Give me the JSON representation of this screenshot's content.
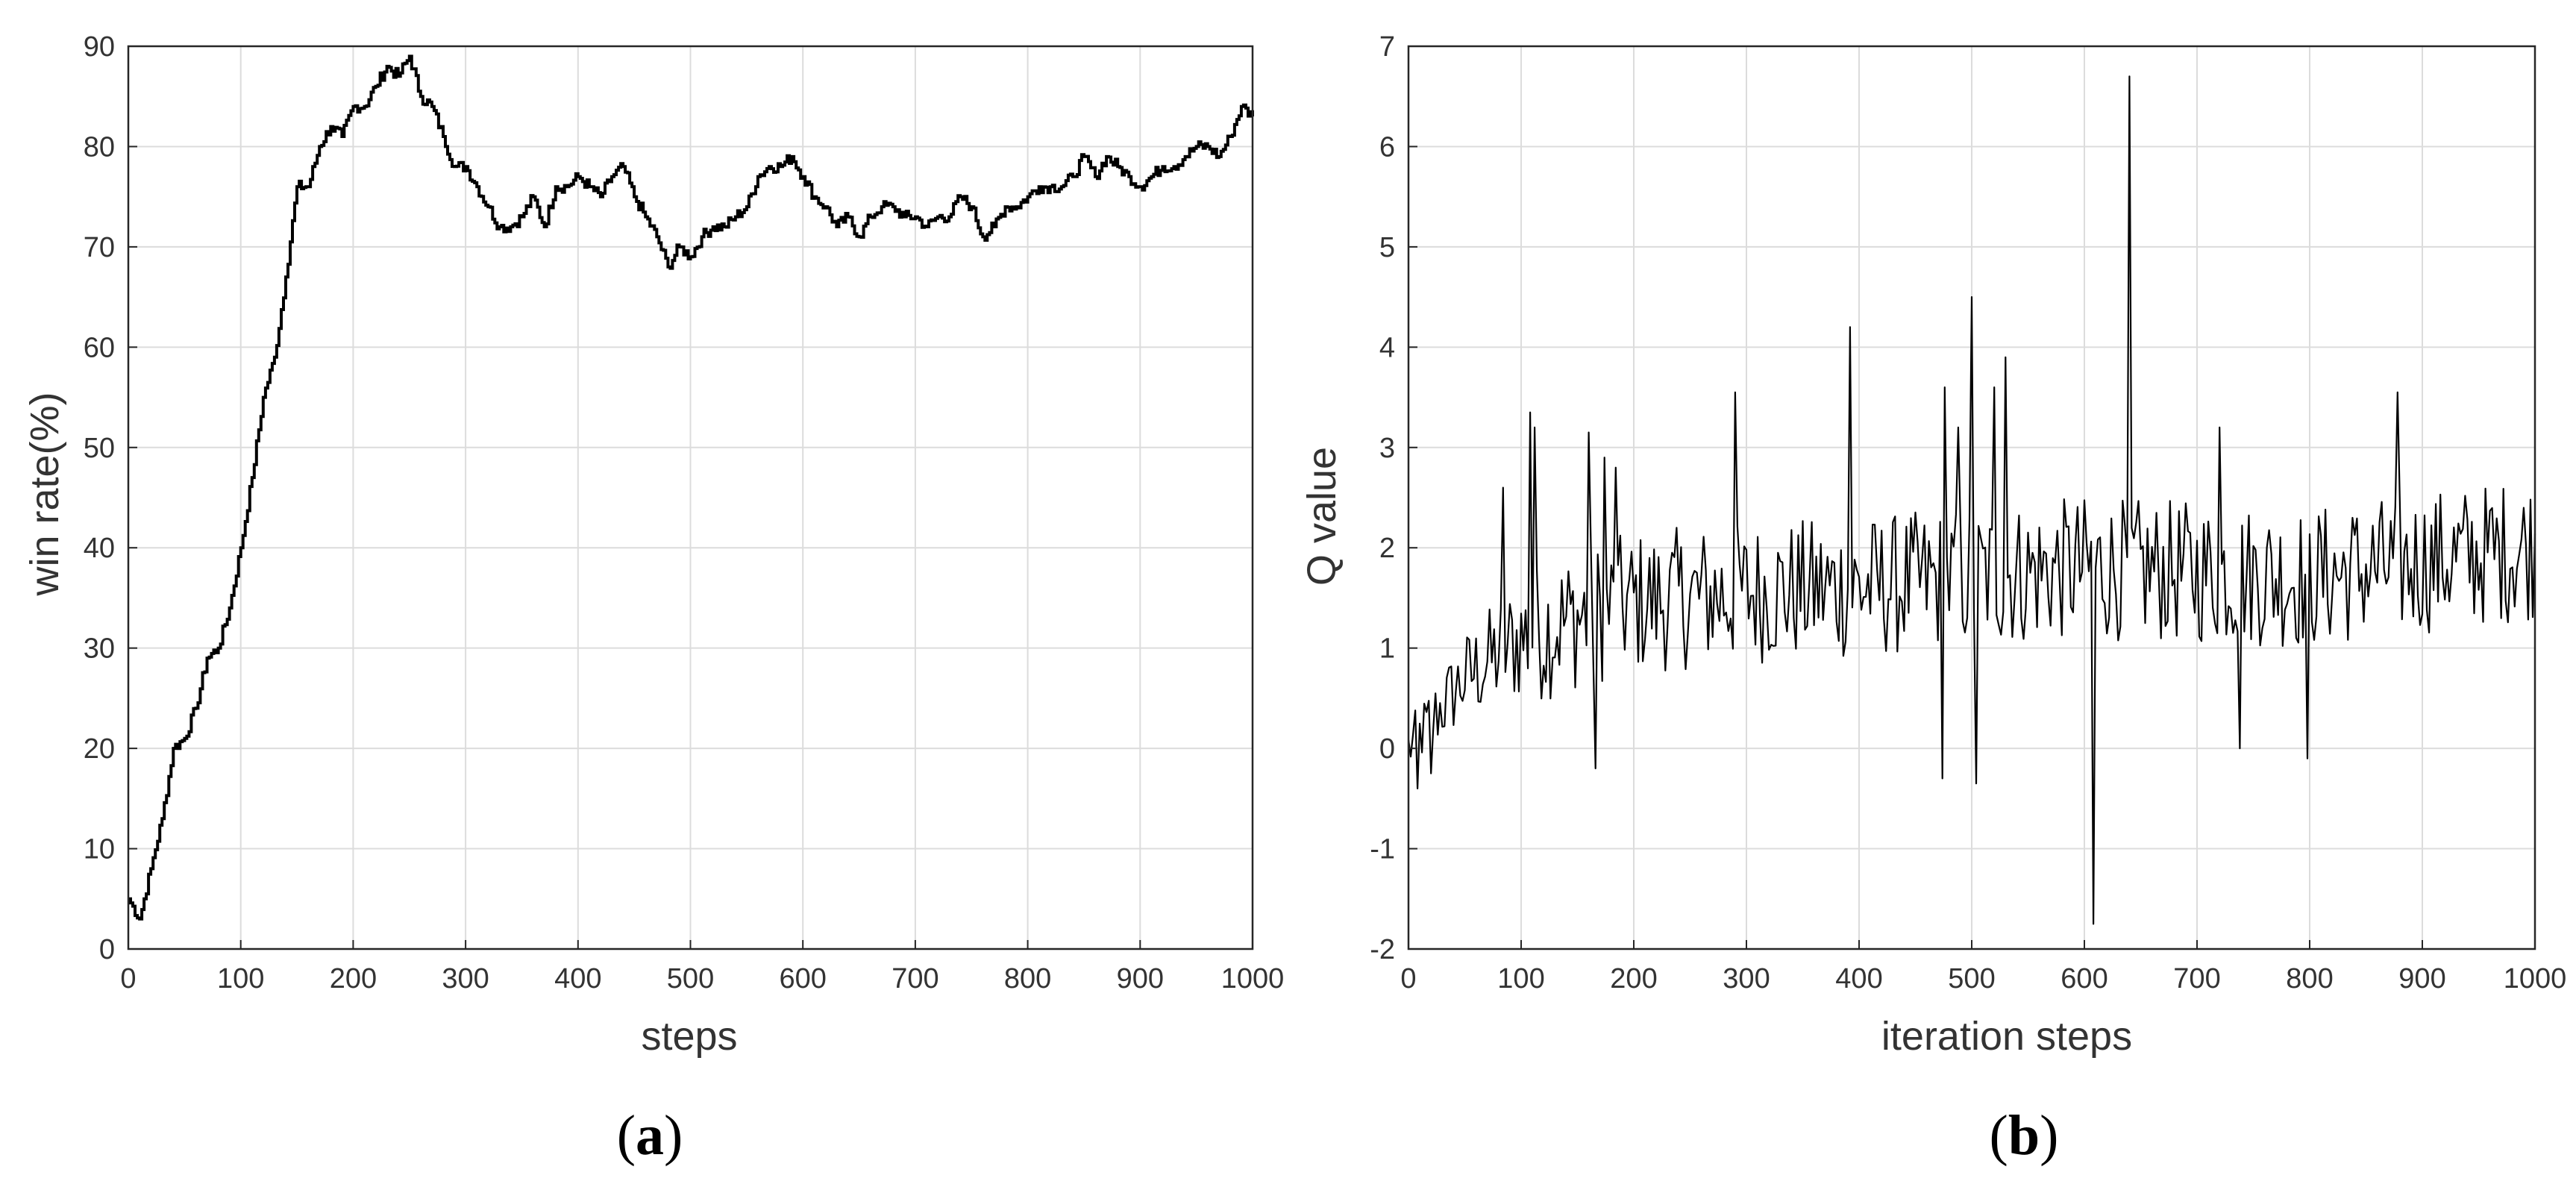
{
  "panels": [
    {
      "label": "(a)",
      "label_letter": "a",
      "chart_type": "line"
    },
    {
      "label": "(b)",
      "label_letter": "b",
      "chart_type": "line"
    }
  ],
  "chart_data": [
    {
      "type": "line",
      "title": "",
      "xlabel": "steps",
      "ylabel": "win rate(%)",
      "xlim": [
        0,
        1000
      ],
      "ylim": [
        0,
        90
      ],
      "xticks": [
        0,
        100,
        200,
        300,
        400,
        500,
        600,
        700,
        800,
        900,
        1000
      ],
      "yticks": [
        0,
        10,
        20,
        30,
        40,
        50,
        60,
        70,
        80,
        90
      ],
      "grid": true,
      "line_color": "#000000",
      "series": [
        {
          "x": [
            0,
            10,
            20,
            30,
            40,
            50,
            60,
            70,
            80,
            90,
            100,
            110,
            120,
            130,
            140,
            150,
            160,
            170,
            180,
            190,
            200,
            210,
            220,
            230,
            240,
            250,
            260,
            270,
            280,
            290,
            300,
            310,
            320,
            330,
            340,
            350,
            360,
            370,
            380,
            390,
            400,
            410,
            420,
            430,
            440,
            450,
            460,
            470,
            480,
            490,
            500,
            510,
            520,
            530,
            540,
            550,
            560,
            570,
            580,
            590,
            600,
            610,
            620,
            630,
            640,
            650,
            660,
            670,
            680,
            690,
            700,
            710,
            720,
            730,
            740,
            750,
            760,
            770,
            780,
            790,
            800,
            810,
            820,
            830,
            840,
            850,
            860,
            870,
            880,
            890,
            900,
            910,
            920,
            930,
            940,
            950,
            960,
            970,
            980,
            990,
            1000
          ],
          "values": [
            5,
            3,
            8,
            13,
            20,
            21,
            24,
            29,
            30,
            34,
            40,
            47,
            55,
            59,
            67,
            76,
            76,
            80,
            82,
            81,
            84,
            84,
            86,
            88,
            87,
            89,
            85,
            84,
            81,
            78,
            78,
            76,
            74,
            72,
            72,
            73,
            75,
            72,
            76,
            76,
            77,
            76,
            75,
            77,
            78,
            75,
            73,
            71,
            68,
            70,
            69,
            71,
            72,
            72,
            73,
            74,
            77,
            78,
            78,
            79,
            77,
            75,
            74,
            72,
            73,
            71,
            73,
            74,
            74,
            73,
            73,
            72,
            73,
            73,
            75,
            74,
            71,
            72,
            74,
            74,
            75,
            76,
            76,
            76,
            77,
            79,
            77,
            79,
            78,
            77,
            76,
            77,
            78,
            78,
            79,
            80,
            80,
            79,
            81,
            84,
            83
          ]
        }
      ]
    },
    {
      "type": "line",
      "title": "",
      "xlabel": "iteration steps",
      "ylabel": "Q value",
      "xlim": [
        0,
        1000
      ],
      "ylim": [
        -2,
        7
      ],
      "xticks": [
        0,
        100,
        200,
        300,
        400,
        500,
        600,
        700,
        800,
        900,
        1000
      ],
      "yticks": [
        -2,
        -1,
        0,
        1,
        2,
        3,
        4,
        5,
        6,
        7
      ],
      "grid": true,
      "line_color": "#000000",
      "trend": {
        "x": [
          0,
          50,
          100,
          150,
          200,
          300,
          400,
          500,
          600,
          700,
          800,
          900,
          1000
        ],
        "values": [
          0.0,
          0.7,
          1.1,
          1.3,
          1.45,
          1.55,
          1.6,
          1.7,
          1.8,
          1.75,
          1.7,
          1.85,
          2.0
        ]
      },
      "noise_amplitude": 0.55,
      "sample_step": 2,
      "spikes": [
        {
          "x": 83,
          "y": 2.6
        },
        {
          "x": 108,
          "y": 3.35
        },
        {
          "x": 112,
          "y": 3.2
        },
        {
          "x": 160,
          "y": 3.15
        },
        {
          "x": 165,
          "y": -0.2
        },
        {
          "x": 174,
          "y": 2.9
        },
        {
          "x": 183,
          "y": 2.8
        },
        {
          "x": 290,
          "y": 3.55
        },
        {
          "x": 392,
          "y": 4.2
        },
        {
          "x": 473,
          "y": -0.3
        },
        {
          "x": 475,
          "y": 3.6
        },
        {
          "x": 487,
          "y": 3.2
        },
        {
          "x": 500,
          "y": 4.5
        },
        {
          "x": 503,
          "y": -0.35
        },
        {
          "x": 520,
          "y": 3.6
        },
        {
          "x": 530,
          "y": 3.9
        },
        {
          "x": 608,
          "y": -1.75
        },
        {
          "x": 640,
          "y": 6.7
        },
        {
          "x": 720,
          "y": 3.2
        },
        {
          "x": 737,
          "y": 0.0
        },
        {
          "x": 797,
          "y": -0.1
        },
        {
          "x": 878,
          "y": 3.55
        },
        {
          "x": 7,
          "y": -0.4
        },
        {
          "x": 20,
          "y": -0.25
        }
      ]
    }
  ]
}
